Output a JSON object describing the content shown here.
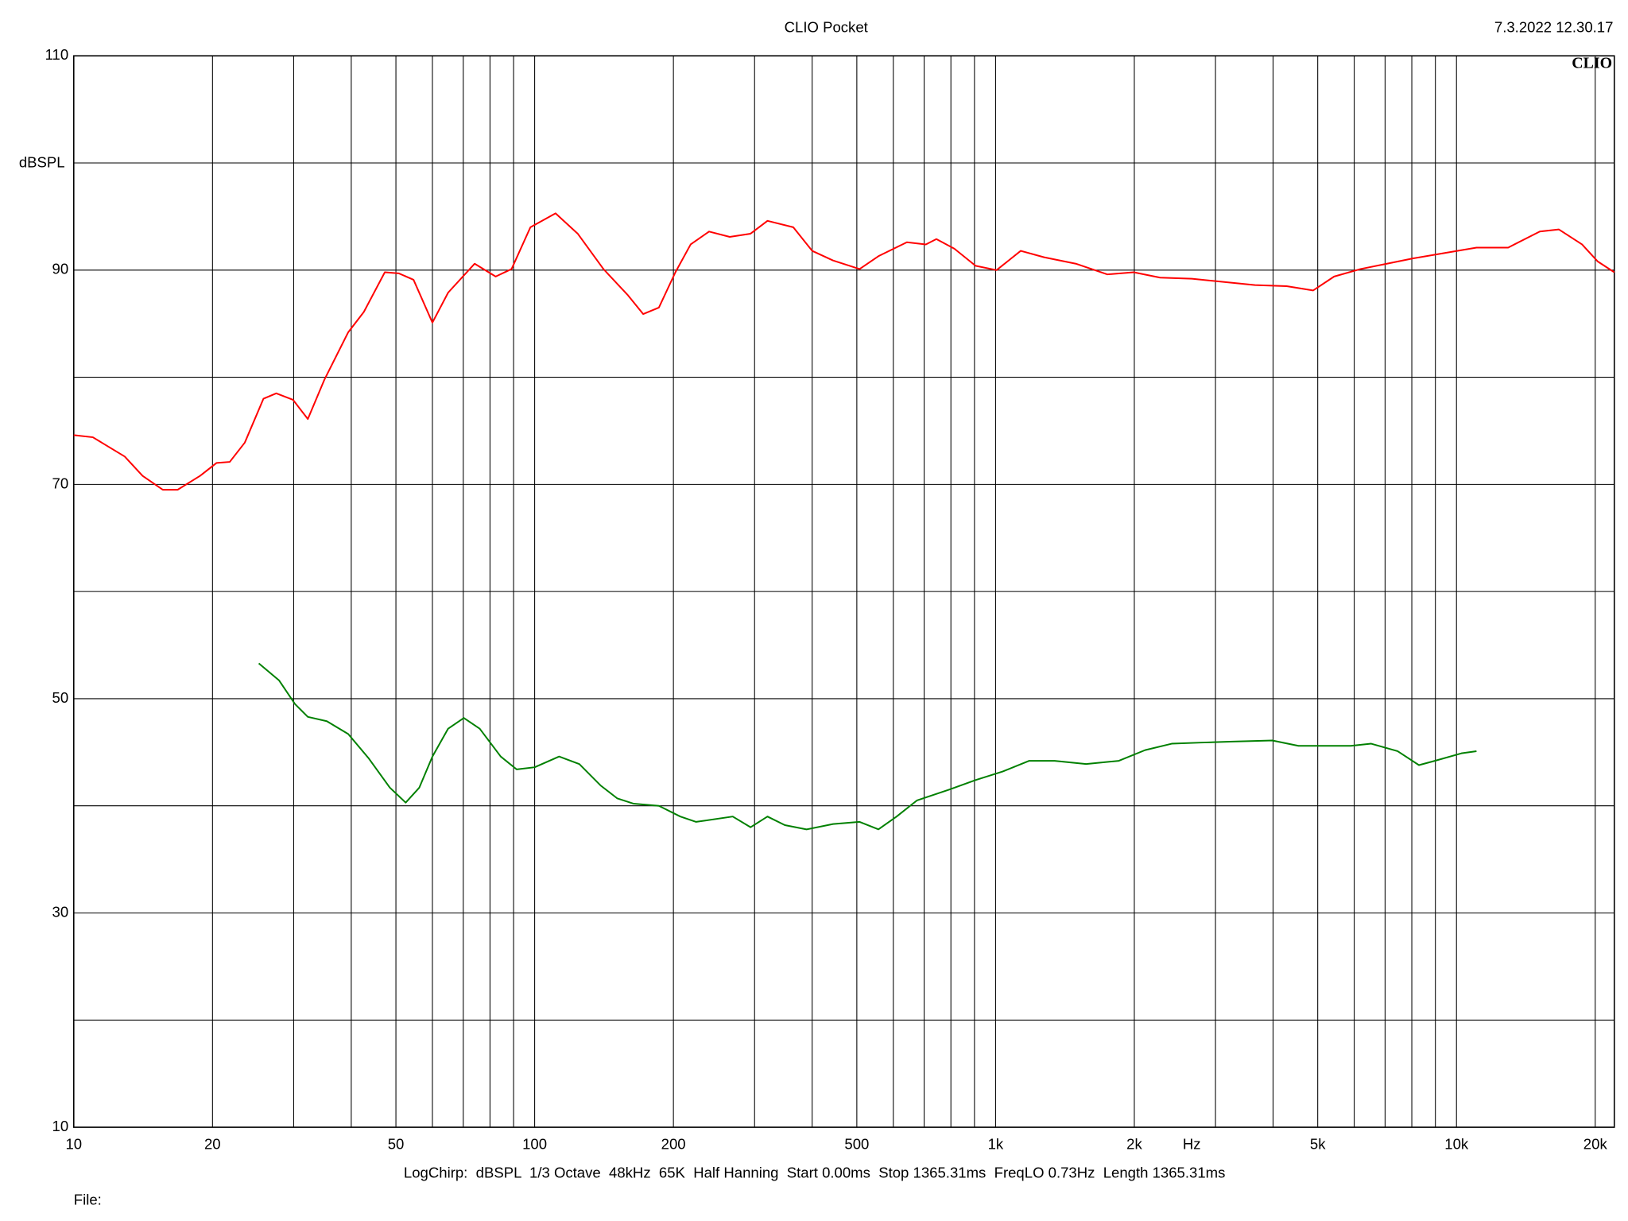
{
  "chart_data": {
    "type": "line",
    "title": "CLIO Pocket",
    "timestamp": "7.3.2022 12.30.17",
    "logo": "CLIO",
    "x_label": "Hz",
    "y_label": "dBSPL",
    "footer": "LogChirp:  dBSPL  1/3 Octave  48kHz  65K  Half Hanning  Start 0.00ms  Stop 1365.31ms  FreqLO 0.73Hz  Length 1365.31ms",
    "file_label": "File:",
    "xscale": "log",
    "grid": true,
    "xlim": [
      10,
      22000
    ],
    "ylim": [
      10,
      110
    ],
    "xticks": [
      10,
      20,
      50,
      100,
      200,
      500,
      {
        "value": 1000,
        "label": "1k"
      },
      {
        "value": 2000,
        "label": "2k"
      },
      {
        "value": 5000,
        "label": "5k"
      },
      {
        "value": 10000,
        "label": "10k"
      },
      {
        "value": 20000,
        "label": "20k"
      }
    ],
    "xgrid_minor": [
      30,
      40,
      60,
      70,
      80,
      90,
      300,
      400,
      600,
      700,
      800,
      900,
      3000,
      4000,
      6000,
      7000,
      8000,
      9000
    ],
    "yticks": [
      10,
      30,
      50,
      70,
      90,
      110
    ],
    "ygrid_minor": [
      20,
      40,
      60,
      80,
      100
    ],
    "series": [
      {
        "color": "#ff0000",
        "x": [
          10,
          11,
          12.9,
          14.1,
          15.6,
          16.8,
          18.8,
          20.4,
          21.8,
          23.5,
          25.8,
          27.5,
          29.9,
          32.2,
          35,
          39.4,
          42.6,
          47.3,
          50.7,
          54.6,
          60,
          64.9,
          74.1,
          82.3,
          89.1,
          97.9,
          111,
          124,
          141,
          159,
          172,
          186,
          202,
          218,
          239,
          265,
          294,
          320,
          364,
          400,
          444,
          507,
          557,
          642,
          706,
          744,
          814,
          905,
          1005,
          1134,
          1274,
          1493,
          1748,
          1994,
          2275,
          2666,
          3121,
          3655,
          4281,
          4885,
          5427,
          6192,
          7063,
          8058,
          9436,
          11052,
          12945,
          15163,
          16672,
          18724,
          20261,
          22000
        ],
        "values": [
          74.6,
          74.4,
          72.6,
          70.8,
          69.5,
          69.5,
          70.8,
          72.0,
          72.1,
          73.9,
          78.0,
          78.5,
          77.9,
          76.1,
          79.8,
          84.2,
          86.1,
          89.8,
          89.7,
          89.1,
          85.1,
          87.9,
          90.6,
          89.4,
          90.1,
          94.0,
          95.3,
          93.4,
          90.1,
          87.7,
          85.9,
          86.5,
          89.8,
          92.4,
          93.6,
          93.1,
          93.4,
          94.6,
          94.0,
          91.8,
          90.9,
          90.1,
          91.3,
          92.6,
          92.4,
          92.9,
          92.0,
          90.4,
          90.0,
          91.8,
          91.2,
          90.6,
          89.6,
          89.8,
          89.3,
          89.2,
          88.9,
          88.6,
          88.5,
          88.1,
          89.4,
          90.1,
          90.6,
          91.1,
          91.6,
          92.1,
          92.1,
          93.6,
          93.8,
          92.4,
          90.8,
          89.8
        ]
      },
      {
        "color": "#008000",
        "x": [
          25.2,
          27.9,
          30.2,
          32.2,
          35.4,
          39.4,
          43.7,
          48.5,
          52.5,
          56.2,
          60,
          64.9,
          70.2,
          76,
          84.4,
          91.4,
          100,
          113,
          125,
          139,
          151,
          164,
          186,
          207,
          224,
          269,
          294,
          320,
          349,
          389,
          444,
          507,
          557,
          610,
          675,
          792,
          905,
          1036,
          1183,
          1343,
          1572,
          1851,
          2111,
          2411,
          2788,
          3275,
          3984,
          4541,
          5315,
          5900,
          6530,
          7451,
          8290,
          8975,
          10250,
          11052
        ],
        "values": [
          53.3,
          51.7,
          49.5,
          48.3,
          47.9,
          46.7,
          44.4,
          41.7,
          40.3,
          41.7,
          44.6,
          47.2,
          48.2,
          47.2,
          44.6,
          43.4,
          43.6,
          44.6,
          43.9,
          41.9,
          40.7,
          40.2,
          40.0,
          39.0,
          38.5,
          39.0,
          38.0,
          39.0,
          38.2,
          37.8,
          38.3,
          38.5,
          37.8,
          39.0,
          40.5,
          41.5,
          42.4,
          43.2,
          44.2,
          44.2,
          43.9,
          44.2,
          45.2,
          45.8,
          45.9,
          46.0,
          46.1,
          45.6,
          45.6,
          45.6,
          45.8,
          45.1,
          43.8,
          44.2,
          44.9,
          45.1
        ]
      }
    ]
  }
}
